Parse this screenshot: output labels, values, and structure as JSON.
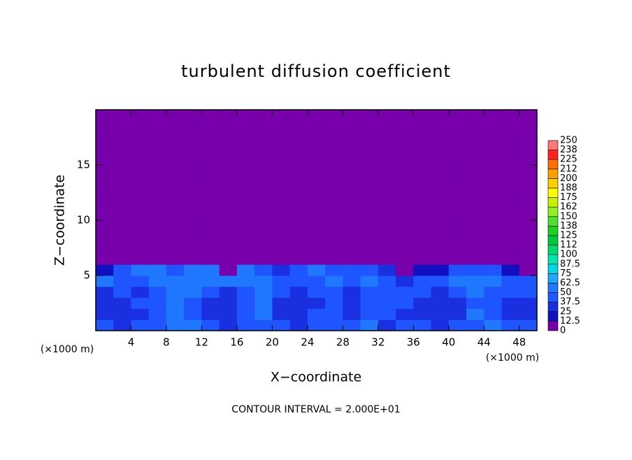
{
  "chart_data": {
    "type": "heatmap",
    "title": "turbulent diffusion coefficient",
    "xlabel": "X−coordinate",
    "ylabel": "Z−coordinate",
    "x_unit": "(×1000 m)",
    "annotation": "CONTOUR INTERVAL = 2.000E+01",
    "xlim": [
      0,
      50
    ],
    "ylim": [
      0,
      20
    ],
    "xticks": [
      4,
      8,
      12,
      16,
      20,
      24,
      28,
      32,
      36,
      40,
      44,
      48
    ],
    "yticks": [
      5,
      10,
      15
    ],
    "x": [
      1,
      3,
      5,
      7,
      9,
      11,
      13,
      15,
      17,
      19,
      21,
      23,
      25,
      27,
      29,
      31,
      33,
      35,
      37,
      39,
      41,
      43,
      45,
      47,
      49
    ],
    "y": [
      0.5,
      1.5,
      2.5,
      3.5,
      4.5,
      5.5,
      6.5,
      7.5,
      8.5,
      9.5,
      10.5,
      11.5,
      12.5,
      13.5,
      14.5,
      15.5,
      16.5,
      17.5,
      18.5,
      19.5
    ],
    "z": [
      [
        40,
        35,
        45,
        40,
        50,
        60,
        40,
        35,
        40,
        45,
        40,
        35,
        40,
        45,
        40,
        50,
        35,
        40,
        40,
        35,
        40,
        45,
        60,
        45,
        40
      ],
      [
        30,
        30,
        35,
        40,
        55,
        45,
        30,
        30,
        40,
        50,
        30,
        30,
        40,
        40,
        35,
        45,
        40,
        35,
        30,
        30,
        35,
        50,
        45,
        35,
        35
      ],
      [
        30,
        35,
        40,
        45,
        55,
        45,
        30,
        25,
        40,
        50,
        30,
        35,
        35,
        40,
        30,
        40,
        45,
        40,
        35,
        30,
        35,
        45,
        40,
        35,
        35
      ],
      [
        35,
        40,
        35,
        45,
        55,
        50,
        40,
        35,
        45,
        55,
        40,
        35,
        40,
        45,
        35,
        45,
        45,
        40,
        45,
        35,
        40,
        50,
        45,
        40,
        40
      ],
      [
        50,
        40,
        40,
        50,
        50,
        55,
        50,
        50,
        50,
        55,
        45,
        40,
        45,
        50,
        45,
        50,
        45,
        35,
        40,
        40,
        50,
        55,
        50,
        45,
        40
      ],
      [
        20,
        45,
        50,
        55,
        45,
        50,
        55,
        10,
        55,
        45,
        35,
        45,
        55,
        40,
        45,
        40,
        25,
        10,
        20,
        15,
        40,
        45,
        40,
        20,
        10
      ],
      [
        0,
        0,
        10,
        5,
        0,
        0,
        10,
        0,
        5,
        0,
        0,
        0,
        10,
        5,
        0,
        5,
        0,
        10,
        0,
        0,
        5,
        0,
        0,
        0,
        0
      ],
      [
        0,
        0,
        0,
        0,
        0,
        0,
        0,
        0,
        0,
        0,
        0,
        0,
        0,
        0,
        0,
        0,
        0,
        0,
        0,
        0,
        0,
        0,
        0,
        0,
        0
      ],
      [
        0,
        0,
        0,
        0,
        0,
        0,
        0,
        0,
        0,
        0,
        0,
        0,
        0,
        0,
        0,
        0,
        0,
        0,
        0,
        0,
        0,
        0,
        0,
        0,
        0
      ],
      [
        0,
        0,
        0,
        0,
        0,
        0,
        0,
        0,
        0,
        0,
        0,
        0,
        0,
        0,
        0,
        0,
        0,
        0,
        0,
        0,
        0,
        0,
        0,
        0,
        0
      ],
      [
        0,
        0,
        0,
        0,
        0,
        0,
        0,
        0,
        0,
        0,
        0,
        0,
        0,
        0,
        0,
        0,
        0,
        0,
        0,
        0,
        0,
        0,
        0,
        0,
        0
      ],
      [
        0,
        0,
        0,
        0,
        0,
        0,
        0,
        0,
        0,
        0,
        0,
        0,
        0,
        0,
        0,
        0,
        0,
        0,
        0,
        0,
        0,
        0,
        0,
        0,
        0
      ],
      [
        0,
        0,
        0,
        0,
        0,
        0,
        0,
        0,
        0,
        0,
        0,
        0,
        0,
        0,
        0,
        0,
        0,
        0,
        0,
        0,
        0,
        0,
        0,
        0,
        0
      ],
      [
        0,
        0,
        0,
        0,
        0,
        0,
        0,
        0,
        0,
        0,
        0,
        0,
        0,
        0,
        0,
        0,
        0,
        0,
        0,
        0,
        0,
        0,
        0,
        0,
        0
      ],
      [
        0,
        0,
        0,
        0,
        0,
        0,
        0,
        0,
        0,
        0,
        0,
        0,
        0,
        0,
        0,
        0,
        0,
        0,
        0,
        0,
        0,
        0,
        0,
        0,
        0
      ],
      [
        0,
        0,
        0,
        0,
        0,
        0,
        0,
        0,
        0,
        0,
        0,
        0,
        0,
        0,
        0,
        0,
        0,
        0,
        0,
        0,
        0,
        0,
        0,
        0,
        0
      ],
      [
        0,
        0,
        0,
        0,
        0,
        0,
        0,
        0,
        0,
        0,
        0,
        0,
        0,
        0,
        0,
        0,
        0,
        0,
        0,
        0,
        0,
        0,
        0,
        0,
        0
      ],
      [
        0,
        0,
        0,
        0,
        0,
        0,
        0,
        0,
        0,
        0,
        0,
        0,
        0,
        0,
        0,
        0,
        0,
        0,
        0,
        0,
        0,
        0,
        0,
        0,
        0
      ],
      [
        0,
        0,
        0,
        0,
        0,
        0,
        0,
        0,
        0,
        0,
        0,
        0,
        0,
        0,
        0,
        0,
        0,
        0,
        0,
        0,
        0,
        0,
        0,
        0,
        0
      ],
      [
        0,
        0,
        0,
        0,
        0,
        0,
        0,
        0,
        0,
        0,
        0,
        0,
        0,
        0,
        0,
        0,
        0,
        0,
        0,
        0,
        0,
        0,
        0,
        0,
        0
      ]
    ],
    "colorbar": {
      "ticks": [
        0,
        12.5,
        25,
        37.5,
        50,
        62.5,
        75,
        87.5,
        100,
        {
          "value": 112.5,
          "label": "112"
        },
        125,
        {
          "value": 137.5,
          "label": "138"
        },
        150,
        {
          "value": 162.5,
          "label": "162"
        },
        175,
        {
          "value": 187.5,
          "label": "188"
        },
        200,
        {
          "value": 212.5,
          "label": "212"
        },
        225,
        {
          "value": 237.5,
          "label": "238"
        },
        250
      ],
      "colors": [
        "#7700aa",
        "#1010c0",
        "#1a30e0",
        "#1f55ff",
        "#2078ff",
        "#20a8ff",
        "#00d8e8",
        "#00e8b0",
        "#00d870",
        "#00c840",
        "#20d020",
        "#50e030",
        "#90f020",
        "#c8f000",
        "#ffff00",
        "#ffd000",
        "#ffa000",
        "#ff7000",
        "#ff2020",
        "#ff7878"
      ]
    }
  }
}
